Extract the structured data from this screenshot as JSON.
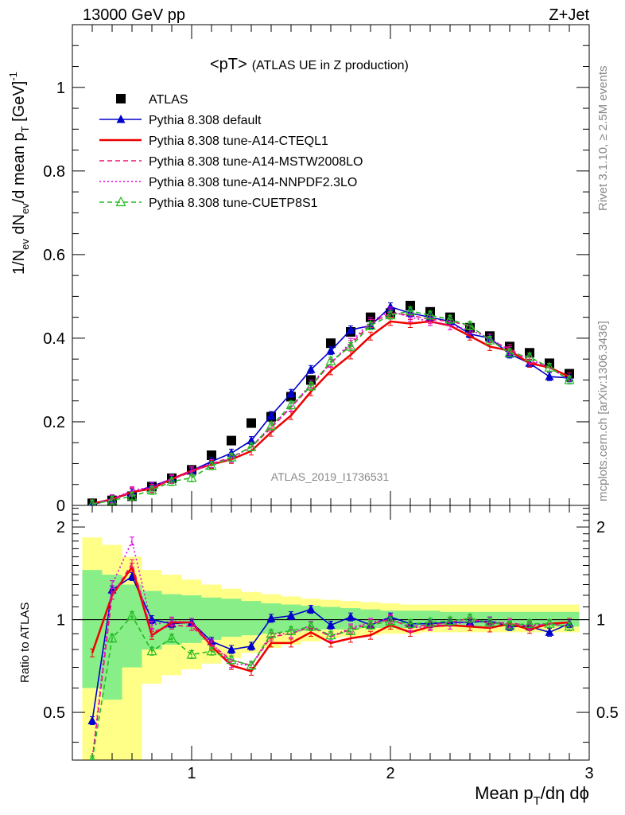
{
  "header": {
    "left": "13000 GeV pp",
    "right": "Z+Jet"
  },
  "side_texts": {
    "rivet": "Rivet 3.1.10, ≥ 2.5M events",
    "mcplots": "mcplots.cern.ch [arXiv:1306.3436]"
  },
  "chart_data": [
    {
      "type": "line",
      "title": "<pT>",
      "subtitle": "(ATLAS UE in Z production)",
      "watermark": "ATLAS_2019_I1736531",
      "ylabel": "1/N_ev dN_ev/d mean p_T [GeV]^-1",
      "xlabel": "",
      "xlim": [
        0.4,
        3.0
      ],
      "ylim": [
        0,
        1.15
      ],
      "y_ticks": [
        0,
        0.2,
        0.4,
        0.6,
        0.8,
        1
      ],
      "y_tick_labels": [
        "0",
        "0.2",
        "0.4",
        "0.6",
        "0.8",
        "1"
      ],
      "x": [
        0.5,
        0.6,
        0.7,
        0.8,
        0.9,
        1.0,
        1.1,
        1.2,
        1.3,
        1.4,
        1.5,
        1.6,
        1.7,
        1.8,
        1.9,
        2.0,
        2.1,
        2.2,
        2.3,
        2.4,
        2.5,
        2.6,
        2.7,
        2.8,
        2.9
      ],
      "series": [
        {
          "name": "ATLAS",
          "color": "#000000",
          "marker": "square",
          "line": "none",
          "values": [
            0.005,
            0.012,
            0.022,
            0.045,
            0.065,
            0.085,
            0.12,
            0.155,
            0.197,
            0.212,
            0.26,
            0.3,
            0.388,
            0.415,
            0.45,
            0.46,
            0.478,
            0.463,
            0.45,
            0.425,
            0.405,
            0.38,
            0.365,
            0.34,
            0.315
          ]
        },
        {
          "name": "Pythia 8.308 default",
          "color": "#0000cc",
          "marker": "triangle",
          "line": "solid",
          "values": [
            0.002,
            0.014,
            0.03,
            0.046,
            0.063,
            0.083,
            0.105,
            0.125,
            0.155,
            0.215,
            0.268,
            0.325,
            0.37,
            0.42,
            0.43,
            0.475,
            0.46,
            0.45,
            0.44,
            0.41,
            0.4,
            0.362,
            0.34,
            0.308,
            0.305
          ]
        },
        {
          "name": "Pythia 8.308 tune-A14-CTEQL1",
          "color": "#ee0000",
          "marker": "none",
          "line": "solid",
          "values": [
            0.004,
            0.015,
            0.032,
            0.04,
            0.063,
            0.083,
            0.098,
            0.11,
            0.13,
            0.175,
            0.215,
            0.272,
            0.322,
            0.36,
            0.405,
            0.44,
            0.435,
            0.44,
            0.43,
            0.405,
            0.38,
            0.37,
            0.34,
            0.33,
            0.308
          ]
        },
        {
          "name": "Pythia 8.308 tune-A14-MSTW2008LO",
          "color": "#ee1177",
          "marker": "none",
          "line": "dashed",
          "values": [
            0.003,
            0.015,
            0.033,
            0.041,
            0.062,
            0.08,
            0.1,
            0.115,
            0.14,
            0.185,
            0.235,
            0.285,
            0.34,
            0.385,
            0.435,
            0.46,
            0.455,
            0.445,
            0.44,
            0.43,
            0.395,
            0.375,
            0.345,
            0.33,
            0.3
          ]
        },
        {
          "name": "Pythia 8.308 tune-A14-NNPDF2.3LO",
          "color": "#dd00dd",
          "marker": "none",
          "line": "dotted",
          "values": [
            0.003,
            0.016,
            0.035,
            0.045,
            0.064,
            0.083,
            0.1,
            0.112,
            0.14,
            0.19,
            0.235,
            0.29,
            0.34,
            0.39,
            0.44,
            0.465,
            0.45,
            0.44,
            0.43,
            0.42,
            0.4,
            0.37,
            0.35,
            0.33,
            0.3
          ]
        },
        {
          "name": "Pythia 8.308 tune-CUETP8S1",
          "color": "#22bb22",
          "marker": "open-triangle",
          "line": "dashed",
          "values": [
            0.003,
            0.012,
            0.022,
            0.036,
            0.057,
            0.066,
            0.095,
            0.115,
            0.14,
            0.19,
            0.24,
            0.285,
            0.345,
            0.38,
            0.43,
            0.455,
            0.465,
            0.455,
            0.445,
            0.43,
            0.395,
            0.365,
            0.355,
            0.33,
            0.3
          ]
        }
      ]
    },
    {
      "type": "line",
      "xlabel": "Mean p_T/dη dϕ",
      "ylabel": "Ratio to ATLAS",
      "xlim": [
        0.4,
        3.0
      ],
      "ylim": [
        0.35,
        2.35
      ],
      "x_ticks": [
        1,
        2,
        3
      ],
      "x_tick_labels": [
        "1",
        "2",
        "3"
      ],
      "y_ticks": [
        0.5,
        1,
        2
      ],
      "y_tick_labels": [
        "0.5",
        "1",
        "2"
      ],
      "reference_line": 1,
      "band_colors": {
        "inner": "#88ee88",
        "outer": "#ffff88"
      },
      "x": [
        0.5,
        0.6,
        0.7,
        0.8,
        0.9,
        1.0,
        1.1,
        1.2,
        1.3,
        1.4,
        1.5,
        1.6,
        1.7,
        1.8,
        1.9,
        2.0,
        2.1,
        2.2,
        2.3,
        2.4,
        2.5,
        2.6,
        2.7,
        2.8,
        2.9
      ],
      "bands": {
        "inner_low": [
          0.6,
          0.55,
          0.7,
          0.8,
          0.83,
          0.84,
          0.86,
          0.88,
          0.89,
          0.9,
          0.91,
          0.92,
          0.93,
          0.93,
          0.94,
          0.94,
          0.94,
          0.95,
          0.95,
          0.95,
          0.95,
          0.95,
          0.95,
          0.95,
          0.95
        ],
        "inner_high": [
          1.45,
          1.4,
          1.3,
          1.24,
          1.21,
          1.2,
          1.18,
          1.17,
          1.15,
          1.13,
          1.12,
          1.11,
          1.1,
          1.09,
          1.08,
          1.07,
          1.07,
          1.07,
          1.06,
          1.06,
          1.06,
          1.06,
          1.06,
          1.06,
          1.06
        ],
        "outer_low": [
          0.35,
          0.35,
          0.35,
          0.62,
          0.66,
          0.69,
          0.72,
          0.75,
          0.78,
          0.81,
          0.83,
          0.85,
          0.87,
          0.88,
          0.89,
          0.9,
          0.9,
          0.91,
          0.91,
          0.91,
          0.91,
          0.91,
          0.91,
          0.91,
          0.91
        ],
        "outer_high": [
          1.85,
          1.75,
          1.6,
          1.45,
          1.4,
          1.35,
          1.3,
          1.26,
          1.23,
          1.21,
          1.19,
          1.17,
          1.16,
          1.15,
          1.14,
          1.13,
          1.12,
          1.12,
          1.12,
          1.12,
          1.12,
          1.12,
          1.12,
          1.12,
          1.12
        ]
      },
      "series": [
        {
          "name": "Pythia 8.308 default",
          "color": "#0000cc",
          "marker": "triangle",
          "line": "solid",
          "values": [
            0.47,
            1.25,
            1.38,
            1.0,
            0.97,
            0.98,
            0.85,
            0.8,
            0.82,
            1.01,
            1.03,
            1.08,
            0.96,
            1.02,
            0.96,
            1.02,
            0.97,
            0.97,
            0.98,
            0.98,
            0.99,
            0.95,
            0.95,
            0.91,
            0.97
          ]
        },
        {
          "name": "Pythia 8.308 tune-A14-CTEQL1",
          "color": "#ee0000",
          "marker": "none",
          "line": "solid",
          "values": [
            0.78,
            1.2,
            1.48,
            0.89,
            0.98,
            0.98,
            0.82,
            0.71,
            0.68,
            0.84,
            0.84,
            0.91,
            0.84,
            0.87,
            0.89,
            0.96,
            0.91,
            0.95,
            0.96,
            0.95,
            0.94,
            0.97,
            0.93,
            0.97,
            0.98
          ]
        },
        {
          "name": "Pythia 8.308 tune-A14-MSTW2008LO",
          "color": "#ee1177",
          "marker": "none",
          "line": "dashed",
          "values": [
            0.35,
            1.2,
            1.52,
            0.91,
            0.96,
            0.95,
            0.83,
            0.74,
            0.71,
            0.88,
            0.9,
            0.95,
            0.88,
            0.93,
            0.97,
            1.0,
            0.95,
            0.96,
            0.98,
            1.01,
            0.97,
            0.98,
            0.95,
            0.97,
            0.95
          ]
        },
        {
          "name": "Pythia 8.308 tune-A14-NNPDF2.3LO",
          "color": "#dd00dd",
          "marker": "none",
          "line": "dotted",
          "values": [
            0.35,
            1.3,
            1.8,
            0.96,
            0.99,
            0.98,
            0.84,
            0.72,
            0.71,
            0.9,
            0.9,
            0.96,
            0.88,
            0.94,
            0.98,
            1.01,
            0.94,
            0.95,
            0.96,
            0.99,
            0.99,
            0.97,
            0.96,
            0.97,
            0.95
          ]
        },
        {
          "name": "Pythia 8.308 tune-CUETP8S1",
          "color": "#22bb22",
          "marker": "open-triangle",
          "line": "dashed",
          "values": [
            0.35,
            0.87,
            1.03,
            0.79,
            0.87,
            0.77,
            0.79,
            0.74,
            0.71,
            0.9,
            0.92,
            0.95,
            0.89,
            0.92,
            0.96,
            0.99,
            0.97,
            0.98,
            0.99,
            1.01,
            0.98,
            0.96,
            0.97,
            0.97,
            0.95
          ]
        }
      ]
    }
  ]
}
